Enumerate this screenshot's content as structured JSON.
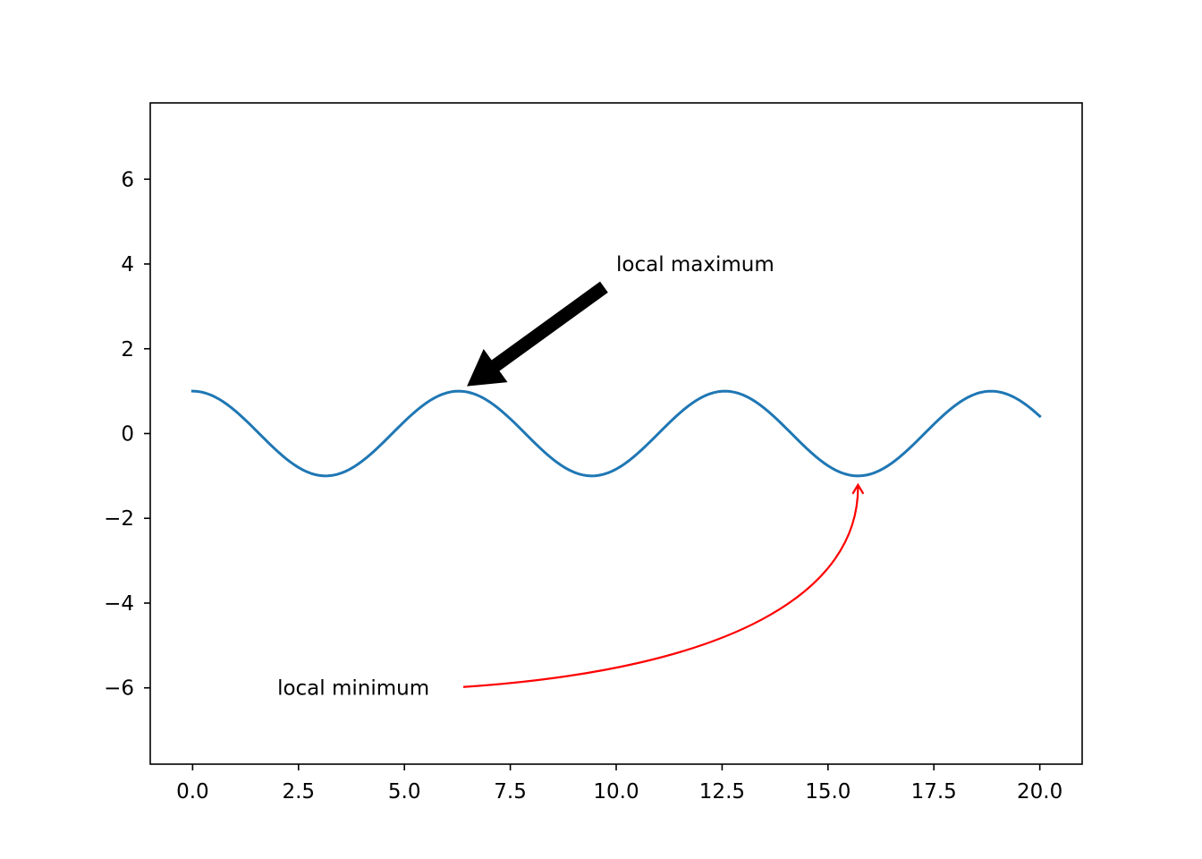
{
  "chart_data": {
    "type": "line",
    "title": "",
    "xlabel": "",
    "ylabel": "",
    "xlim": [
      -1.0,
      21.0
    ],
    "ylim": [
      -7.8,
      7.8
    ],
    "grid": false,
    "xticks": [
      0.0,
      2.5,
      5.0,
      7.5,
      10.0,
      12.5,
      15.0,
      17.5,
      20.0
    ],
    "xtick_labels": [
      "0.0",
      "2.5",
      "5.0",
      "7.5",
      "10.0",
      "12.5",
      "15.0",
      "17.5",
      "20.0"
    ],
    "yticks": [
      6,
      4,
      2,
      0,
      -2,
      -4,
      -6
    ],
    "ytick_labels": [
      "6",
      "4",
      "2",
      "0",
      "−2",
      "−4",
      "−6"
    ],
    "series": [
      {
        "function": "cos",
        "x_range": [
          0.0,
          20.0
        ],
        "x_step": 0.1,
        "color": "#1f77b4"
      }
    ],
    "annotations": [
      {
        "text": "local maximum",
        "point": [
          6.283,
          1.0
        ],
        "text_position": [
          10.0,
          4.0
        ],
        "arrow_style": "filled-black",
        "color": "#000000"
      },
      {
        "text": "local minimum",
        "point": [
          15.708,
          -1.0
        ],
        "text_position": [
          2.0,
          -6.0
        ],
        "arrow_style": "curved-red",
        "color": "#ff0000"
      }
    ]
  }
}
